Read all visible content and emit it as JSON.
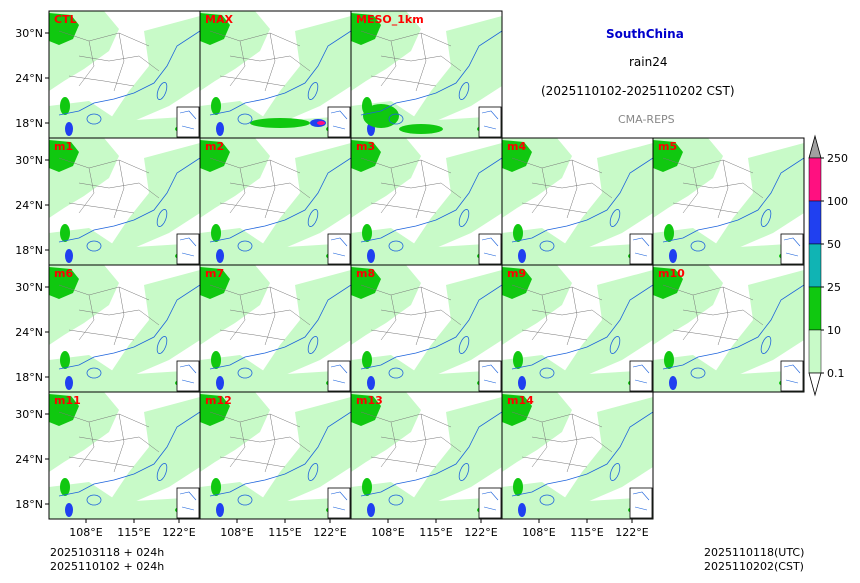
{
  "header": {
    "region": "SouthChina",
    "variable": "rain24",
    "period": "(2025110102-2025110202 CST)",
    "system": "CMA-REPS"
  },
  "panels": [
    "CTL",
    "MAX",
    "MESO_1km",
    "m1",
    "m2",
    "m3",
    "m4",
    "m5",
    "m6",
    "m7",
    "m8",
    "m9",
    "m10",
    "m11",
    "m12",
    "m13",
    "m14"
  ],
  "axes": {
    "lat_ticks": [
      "30°N",
      "24°N",
      "18°N"
    ],
    "lon_ticks": [
      "108°E",
      "115°E",
      "122°E"
    ]
  },
  "colorbar": {
    "levels": [
      "0.1",
      "10",
      "25",
      "50",
      "100",
      "250"
    ],
    "colors": [
      "#c8fac8",
      "#10c810",
      "#10b4b4",
      "#2040f0",
      "#ff1080",
      "#a0a0a0"
    ]
  },
  "footer": {
    "init_utc": "2025103118  +  024h",
    "init_cst": "2025110102  +  024h",
    "valid_utc": "2025110118(UTC)",
    "valid_cst": "2025110202(CST)"
  },
  "colors": {
    "panel_label": "#ff0000",
    "region_title": "#0000cc",
    "system_label": "#888888",
    "light_rain": "#c8fac8",
    "moderate_rain": "#10c810",
    "coast": "#1e64dc"
  }
}
